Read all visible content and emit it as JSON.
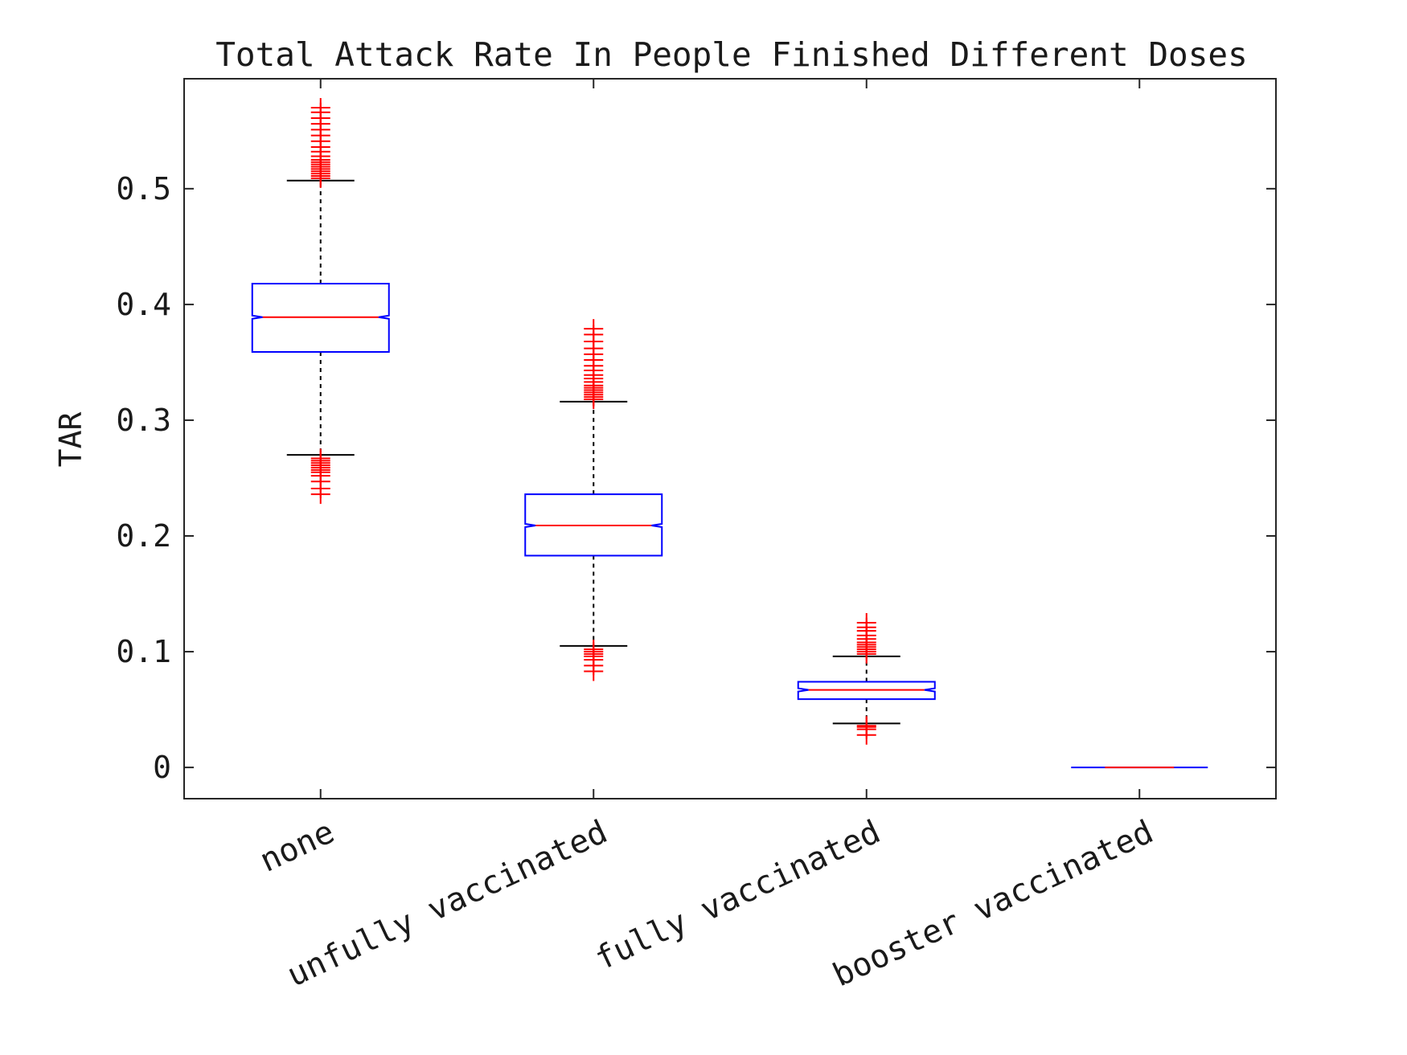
{
  "chart_data": {
    "type": "box",
    "title": "Total Attack Rate In People Finished Different Doses",
    "xlabel": "",
    "ylabel": "TAR",
    "ylim": [
      -0.027,
      0.595
    ],
    "yticks": [
      "0",
      "0.1",
      "0.2",
      "0.3",
      "0.4",
      "0.5"
    ],
    "ytick_values": [
      0,
      0.1,
      0.2,
      0.3,
      0.4,
      0.5
    ],
    "grid": false,
    "notched": true,
    "categories": [
      "none",
      "unfully vaccinated",
      "fully vaccinated",
      "booster vaccinated"
    ],
    "boxes": [
      {
        "category": "none",
        "q1": 0.359,
        "median": 0.389,
        "q3": 0.418,
        "whisker_low": 0.27,
        "whisker_high": 0.507,
        "outliers": [
          0.236,
          0.241,
          0.247,
          0.252,
          0.255,
          0.257,
          0.259,
          0.261,
          0.263,
          0.265,
          0.267,
          0.509,
          0.511,
          0.513,
          0.515,
          0.517,
          0.519,
          0.521,
          0.523,
          0.525,
          0.528,
          0.532,
          0.536,
          0.541,
          0.546,
          0.551,
          0.556,
          0.561,
          0.566,
          0.57
        ]
      },
      {
        "category": "unfully vaccinated",
        "q1": 0.183,
        "median": 0.209,
        "q3": 0.236,
        "whisker_low": 0.105,
        "whisker_high": 0.316,
        "outliers": [
          0.083,
          0.088,
          0.093,
          0.096,
          0.098,
          0.1,
          0.102,
          0.318,
          0.32,
          0.322,
          0.324,
          0.326,
          0.328,
          0.33,
          0.333,
          0.336,
          0.339,
          0.343,
          0.347,
          0.352,
          0.357,
          0.362,
          0.368,
          0.374,
          0.379
        ]
      },
      {
        "category": "fully vaccinated",
        "q1": 0.059,
        "median": 0.067,
        "q3": 0.074,
        "whisker_low": 0.038,
        "whisker_high": 0.096,
        "outliers": [
          0.028,
          0.033,
          0.035,
          0.036,
          0.098,
          0.1,
          0.102,
          0.104,
          0.106,
          0.108,
          0.111,
          0.114,
          0.118,
          0.121,
          0.125
        ]
      },
      {
        "category": "booster vaccinated",
        "q1": 0,
        "median": 0,
        "q3": 0,
        "whisker_low": 0,
        "whisker_high": 0,
        "outliers": []
      }
    ]
  },
  "colors": {
    "box": "#0000ff",
    "median": "#ff0000",
    "outlier": "#ff0000",
    "whisker": "#000000",
    "axes": "#262626",
    "text": "#1a1a1a"
  }
}
